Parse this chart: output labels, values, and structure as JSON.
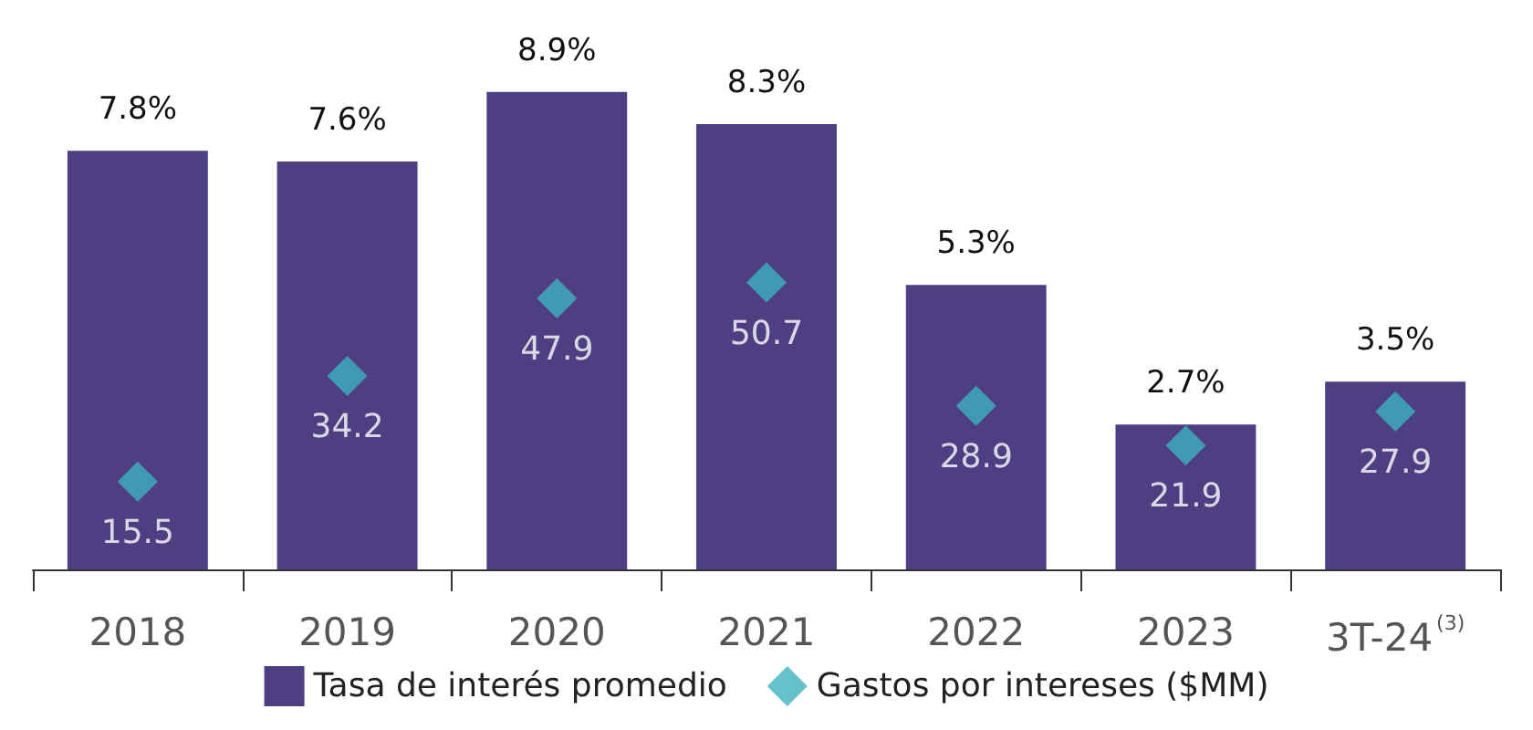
{
  "chart_data": {
    "type": "bar",
    "categories": [
      "2018",
      "2019",
      "2020",
      "2021",
      "2022",
      "2023",
      "3T-24$^{(3)}$"
    ],
    "series": [
      {
        "name": "Tasa de interés promedio",
        "color": "#4e3f82",
        "values": [
          7.8,
          7.6,
          8.9,
          8.3,
          5.3,
          2.7,
          3.5
        ],
        "value_labels": [
          "7.8%",
          "7.6%",
          "8.9%",
          "8.3%",
          "5.3%",
          "2.7%",
          "3.5%"
        ]
      },
      {
        "name": "Gastos por intereses ($MM)",
        "type": "scatter",
        "axis": "y2",
        "color": "#3eb1bf",
        "values": [
          15.5,
          34.2,
          47.9,
          50.7,
          28.9,
          21.9,
          27.9
        ],
        "value_labels": [
          "15.5",
          "34.2",
          "47.9",
          "50.7",
          "28.9",
          "21.9",
          "27.9"
        ]
      }
    ],
    "tick_labels": "x",
    "grid": false,
    "legend": "bottom",
    "marker": "diamond"
  }
}
